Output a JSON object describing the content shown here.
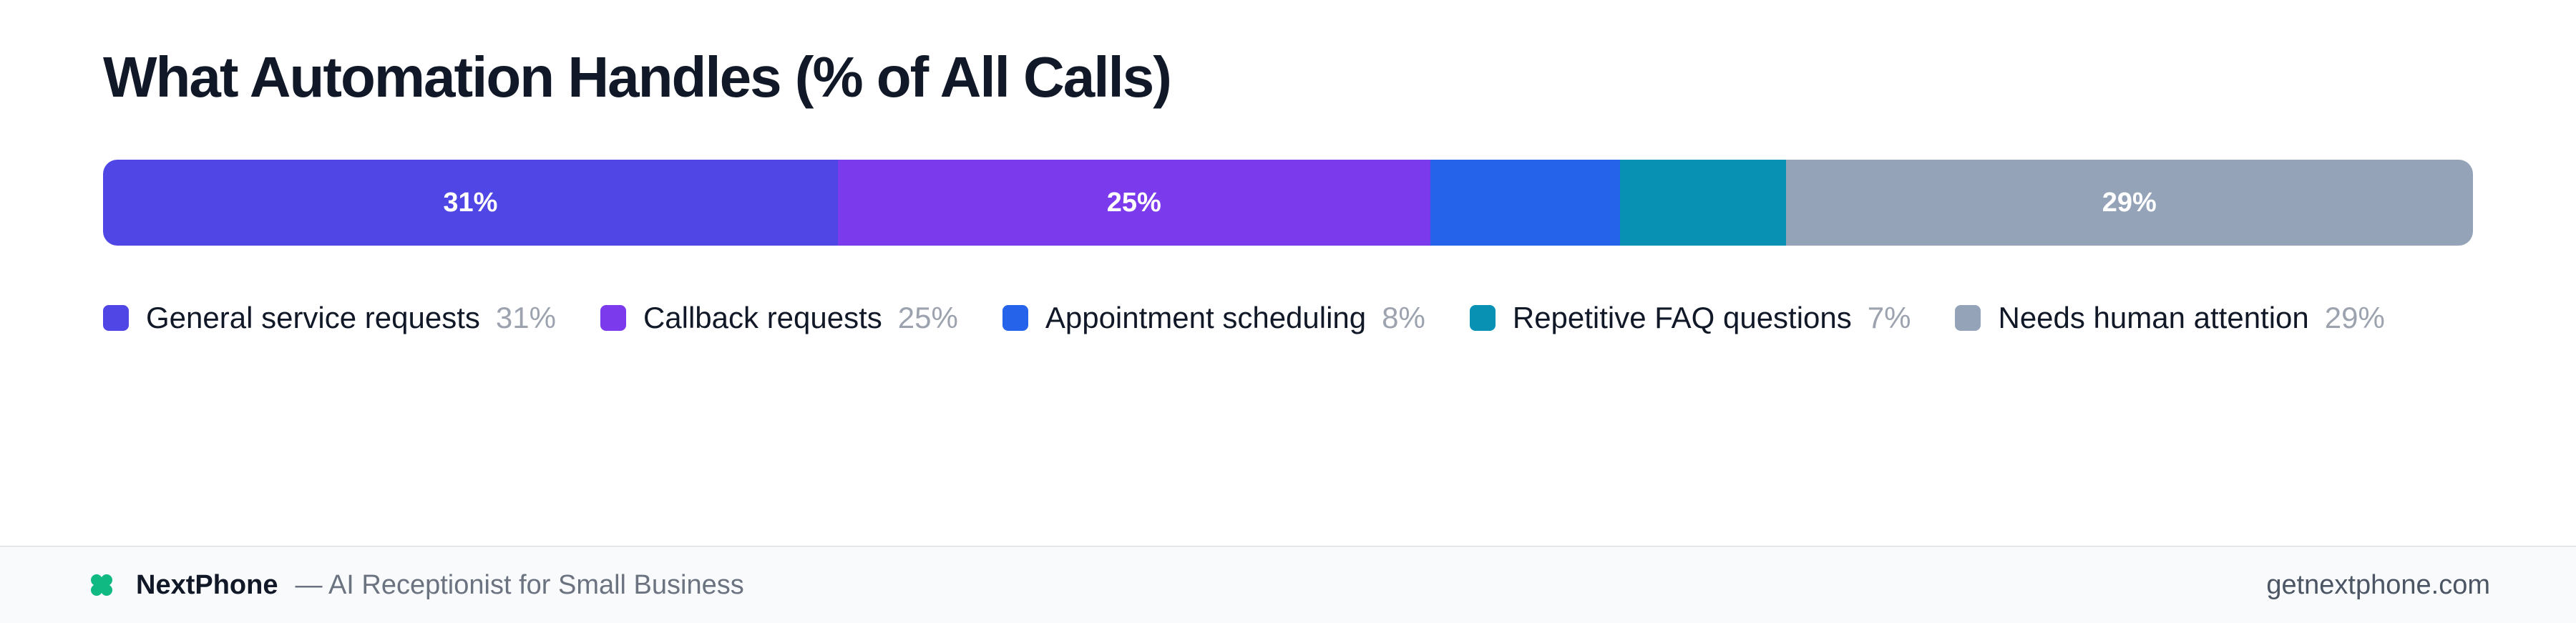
{
  "chart_data": {
    "type": "bar",
    "orientation": "horizontal-stacked-100",
    "title": "What Automation Handles (% of All Calls)",
    "categories": [
      "General service requests",
      "Callback requests",
      "Appointment scheduling",
      "Repetitive FAQ questions",
      "Needs human attention"
    ],
    "values": [
      31,
      25,
      8,
      7,
      29
    ],
    "value_labels": [
      "31%",
      "25%",
      "8%",
      "7%",
      "29%"
    ],
    "bar_labels": [
      "31%",
      "25%",
      "",
      "",
      "29%"
    ],
    "colors": [
      "#4f46e5",
      "#7c3aed",
      "#2563eb",
      "#0891b2",
      "#94a3b8"
    ],
    "unit": "%",
    "legend": "bottom-left",
    "grid": false
  },
  "footer": {
    "brand_icon": "clover-icon",
    "brand_color": "#10b981",
    "brand_name": "NextPhone",
    "tagline": "— AI Receptionist for Small Business",
    "url": "getnextphone.com"
  }
}
